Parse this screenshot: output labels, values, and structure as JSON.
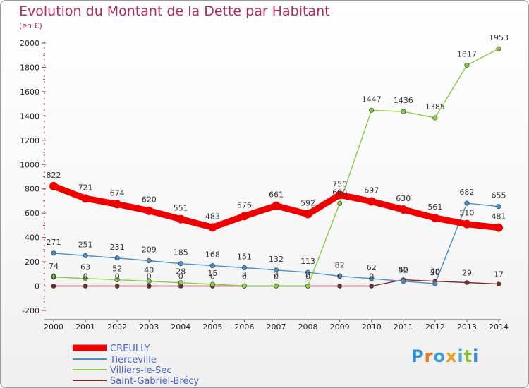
{
  "chart_data": {
    "type": "line",
    "title": "Evolution du Montant de la Dette par Habitant",
    "subtitle": "(en €)",
    "x": [
      "2000",
      "2001",
      "2002",
      "2003",
      "2004",
      "2005",
      "2006",
      "2007",
      "2008",
      "2009",
      "2010",
      "2011",
      "2012",
      "2013",
      "2014"
    ],
    "yticks": [
      "-200",
      "0",
      "200",
      "400",
      "600",
      "800",
      "1000",
      "1200",
      "1400",
      "1600",
      "1800",
      "2000"
    ],
    "ylim": [
      -200,
      2000
    ],
    "grid": false,
    "legend_position": "bottom-left",
    "series": [
      {
        "name": "CREULLY",
        "color": "#ee0000",
        "values": [
          822,
          721,
          674,
          620,
          551,
          483,
          576,
          661,
          592,
          750,
          697,
          630,
          561,
          510,
          481
        ],
        "labels": [
          "822",
          "721",
          "674",
          "620",
          "551",
          "483",
          "576",
          "661",
          "592",
          "750",
          "697",
          "630",
          "561",
          "510",
          "481"
        ]
      },
      {
        "name": "Tierceville",
        "color": "#4a90c8",
        "values": [
          271,
          251,
          231,
          209,
          185,
          168,
          151,
          132,
          113,
          82,
          62,
          40,
          20,
          682,
          655
        ],
        "labels": [
          "271",
          "251",
          "231",
          "209",
          "185",
          "168",
          "151",
          "132",
          "113",
          "82",
          "62",
          "40",
          "20",
          "682",
          "655"
        ]
      },
      {
        "name": "Villiers-le-Sec",
        "color": "#88cc44",
        "values": [
          74,
          63,
          52,
          40,
          28,
          15,
          2,
          2,
          2,
          680,
          1447,
          1436,
          1385,
          1817,
          1953
        ],
        "labels": [
          "74",
          "63",
          "52",
          "40",
          "28",
          "15",
          "2",
          "2",
          "2",
          "680",
          "1447",
          "1436",
          "1385",
          "1817",
          "1953"
        ]
      },
      {
        "name": "Saint-Gabriel-Brécy",
        "color": "#7a2a2a",
        "values": [
          0,
          0,
          0,
          0,
          0,
          0,
          0,
          0,
          0,
          0,
          0,
          52,
          40,
          29,
          17
        ],
        "labels": [
          "0",
          "0",
          "0",
          "0",
          "0",
          "0",
          "0",
          "0",
          "0",
          "0",
          "0",
          "52",
          "40",
          "29",
          "17"
        ]
      }
    ]
  },
  "logo": {
    "text": "Proxiti"
  }
}
